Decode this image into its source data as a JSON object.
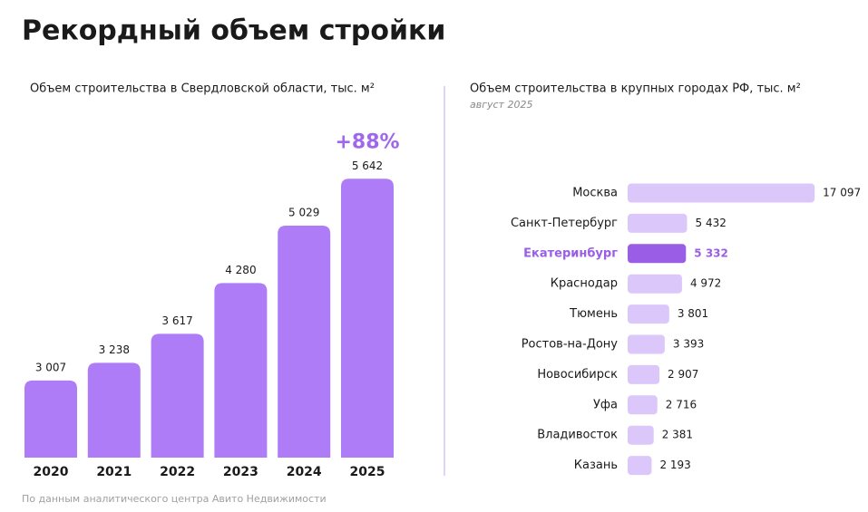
{
  "title": "Рекордный объем стройки",
  "source": "По данным аналитического центра Авито Недвижимости",
  "chart_data": [
    {
      "type": "bar",
      "title": "Объем строительства в Свердловской области, тыс. м²",
      "categories": [
        "2020",
        "2021",
        "2022",
        "2023",
        "2024",
        "2025"
      ],
      "values": [
        3007,
        3238,
        3617,
        4280,
        5029,
        5642
      ],
      "value_labels": [
        "3 007",
        "3 238",
        "3 617",
        "4 280",
        "5 029",
        "5 642"
      ],
      "annotation": "+88%",
      "annotation_color": "#a066ee",
      "color": "#ad7cf6",
      "ylim": [
        2000,
        6000
      ]
    },
    {
      "type": "hbar",
      "title": "Объем строительства в крупных городах РФ, тыс. м²",
      "subtitle": "август 2025",
      "categories": [
        "Москва",
        "Санкт-Петербург",
        "Екатеринбург",
        "Краснодар",
        "Тюмень",
        "Ростов-на-Дону",
        "Новосибирск",
        "Уфа",
        "Владивосток",
        "Казань"
      ],
      "values": [
        17097,
        5432,
        5332,
        4972,
        3801,
        3393,
        2907,
        2716,
        2381,
        2193
      ],
      "value_labels": [
        "17 097",
        "5 432",
        "5 332",
        "4 972",
        "3 801",
        "3 393",
        "2 907",
        "2 716",
        "2 381",
        "2 193"
      ],
      "color": "#dcc7fb",
      "highlight_index": 2,
      "highlight_color": "#9a5ee6",
      "xlim": [
        0,
        17000
      ]
    }
  ]
}
